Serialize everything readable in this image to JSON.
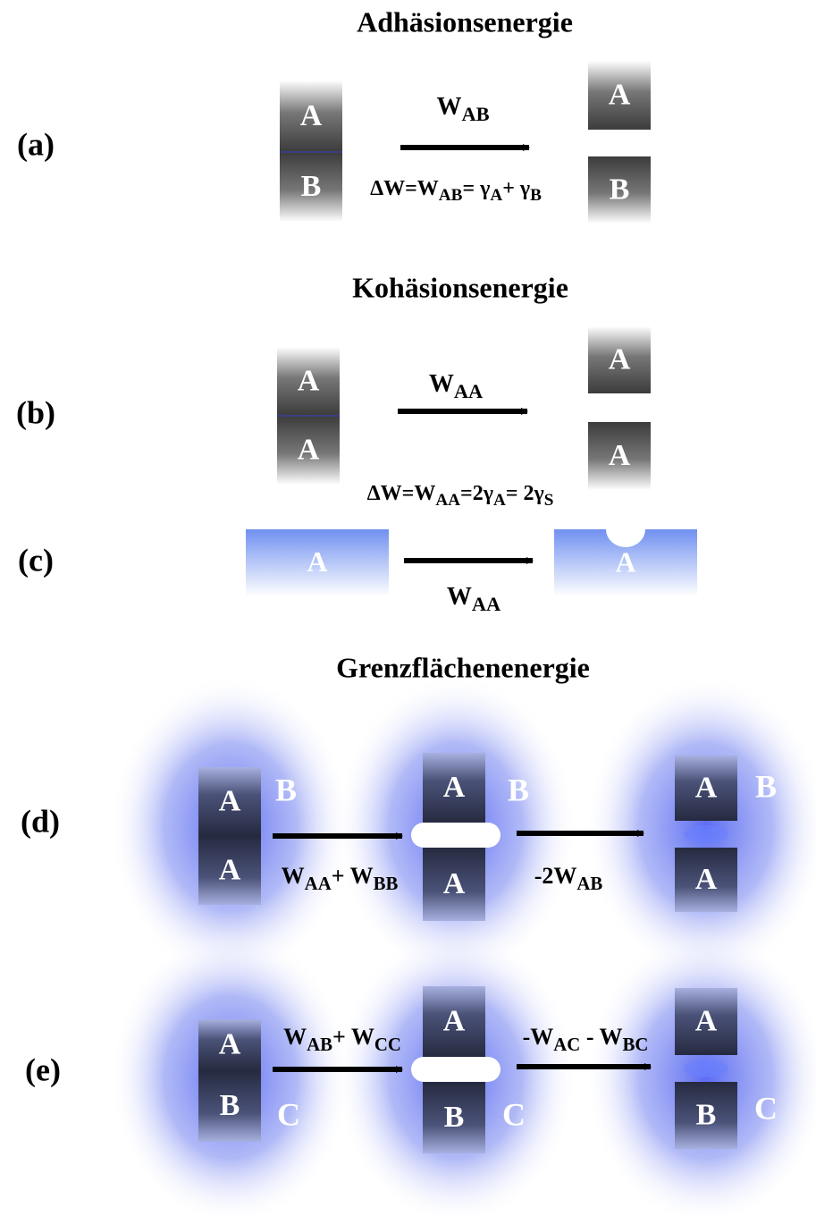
{
  "titles": [
    "Adhäsionsenergie",
    "Kohäsionsenergie",
    "Grenzflächenenergie"
  ],
  "panels": [
    {
      "label": "(a)",
      "left": [
        "A",
        "B"
      ],
      "right": [
        "A",
        "B"
      ],
      "arrow": [
        "W",
        "AB"
      ],
      "formula": [
        "ΔW=W",
        "AB",
        "= γ",
        "A",
        "+ γ",
        "B"
      ]
    },
    {
      "label": "(b)",
      "left": [
        "A",
        "A"
      ],
      "right": [
        "A",
        "A"
      ],
      "arrow": [
        "W",
        "AA"
      ],
      "formula": [
        "ΔW=W",
        "AA",
        "=2γ",
        "A",
        "= 2γ",
        "S"
      ]
    },
    {
      "label": "(c)",
      "left": [
        "A"
      ],
      "right": [
        "A"
      ],
      "arrow": [
        "W",
        "AA"
      ]
    },
    {
      "label": "(d)",
      "left": [
        "A",
        "A"
      ],
      "left_side": "B",
      "middle": [
        "A",
        "A"
      ],
      "middle_side": "B",
      "right": [
        "A",
        "A"
      ],
      "right_side": "B",
      "arrow": [
        "W",
        "AA",
        "+ W",
        "BB"
      ],
      "arrow2": [
        "-2W",
        "AB"
      ]
    },
    {
      "label": "(e)",
      "left": [
        "A",
        "B"
      ],
      "left_side": "C",
      "middle": [
        "A",
        "B"
      ],
      "middle_side": "C",
      "right": [
        "A",
        "B"
      ],
      "right_side": "C",
      "arrow": [
        "W",
        "AB",
        "+ W",
        "CC"
      ],
      "arrow2": [
        "-W",
        "AC",
        " - W",
        "BC"
      ]
    }
  ]
}
